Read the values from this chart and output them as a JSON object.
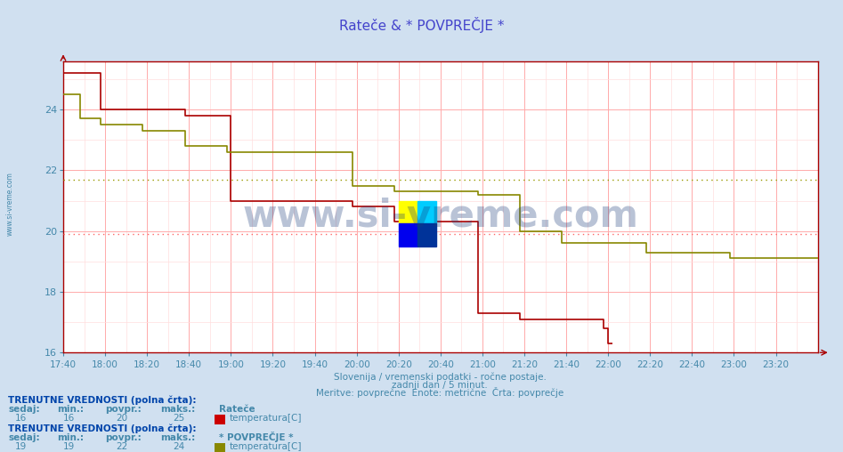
{
  "title": "Rateče & * POVPREČJE *",
  "title_color": "#4444cc",
  "bg_color": "#d0e0f0",
  "plot_bg_color": "#ffffff",
  "xlabel_lines": [
    "Slovenija / vremenski podatki - ročne postaje.",
    "zadnji dan / 5 minut.",
    "Meritve: povprečne  Enote: metrične  Črta: povprečje"
  ],
  "xlabel_color": "#4488aa",
  "ylabel_color": "#4488aa",
  "xlim_start": 0,
  "xlim_end": 360,
  "ylim": [
    16,
    25.6
  ],
  "yticks": [
    16,
    18,
    20,
    22,
    24
  ],
  "xtick_labels": [
    "17:40",
    "18:00",
    "18:20",
    "18:40",
    "19:00",
    "19:20",
    "19:40",
    "20:00",
    "20:20",
    "20:40",
    "21:00",
    "21:20",
    "21:40",
    "22:00",
    "22:20",
    "22:40",
    "23:00",
    "23:20"
  ],
  "xtick_positions": [
    0,
    20,
    40,
    60,
    80,
    100,
    120,
    140,
    160,
    180,
    200,
    220,
    240,
    260,
    280,
    300,
    320,
    340
  ],
  "grid_major_color": "#ffaaaa",
  "grid_minor_color": "#ffdddd",
  "watermark": "www.si-vreme.com",
  "watermark_color": "#1a3a7a",
  "watermark_alpha": 0.3,
  "line1_color": "#aa0000",
  "line2_color": "#888800",
  "hline1_color": "#ff6666",
  "hline1_y": 19.9,
  "hline2_color": "#999900",
  "hline2_y": 21.7,
  "legend_box_color1": "#cc0000",
  "legend_box_color2": "#888800",
  "footer_bold_color": "#0044aa",
  "footer_text_color": "#4488aa",
  "red_line_data": [
    [
      0,
      25.2
    ],
    [
      18,
      25.2
    ],
    [
      18,
      24.0
    ],
    [
      58,
      24.0
    ],
    [
      58,
      23.8
    ],
    [
      80,
      23.8
    ],
    [
      80,
      21.0
    ],
    [
      138,
      21.0
    ],
    [
      138,
      20.8
    ],
    [
      158,
      20.8
    ],
    [
      158,
      20.3
    ],
    [
      198,
      20.3
    ],
    [
      198,
      17.3
    ],
    [
      218,
      17.3
    ],
    [
      218,
      17.1
    ],
    [
      258,
      17.1
    ],
    [
      258,
      16.8
    ],
    [
      260,
      16.8
    ],
    [
      260,
      16.3
    ],
    [
      262,
      16.3
    ]
  ],
  "olive_line_data": [
    [
      0,
      24.5
    ],
    [
      8,
      24.5
    ],
    [
      8,
      23.7
    ],
    [
      18,
      23.7
    ],
    [
      18,
      23.5
    ],
    [
      38,
      23.5
    ],
    [
      38,
      23.3
    ],
    [
      58,
      23.3
    ],
    [
      58,
      22.8
    ],
    [
      78,
      22.8
    ],
    [
      78,
      22.6
    ],
    [
      138,
      22.6
    ],
    [
      138,
      21.5
    ],
    [
      158,
      21.5
    ],
    [
      158,
      21.3
    ],
    [
      198,
      21.3
    ],
    [
      198,
      21.2
    ],
    [
      218,
      21.2
    ],
    [
      218,
      20.0
    ],
    [
      238,
      20.0
    ],
    [
      238,
      19.6
    ],
    [
      278,
      19.6
    ],
    [
      278,
      19.3
    ],
    [
      318,
      19.3
    ],
    [
      318,
      19.1
    ],
    [
      360,
      19.1
    ]
  ],
  "logo_colors": [
    "#ffff00",
    "#00ccff",
    "#0000ee",
    "#003399"
  ]
}
